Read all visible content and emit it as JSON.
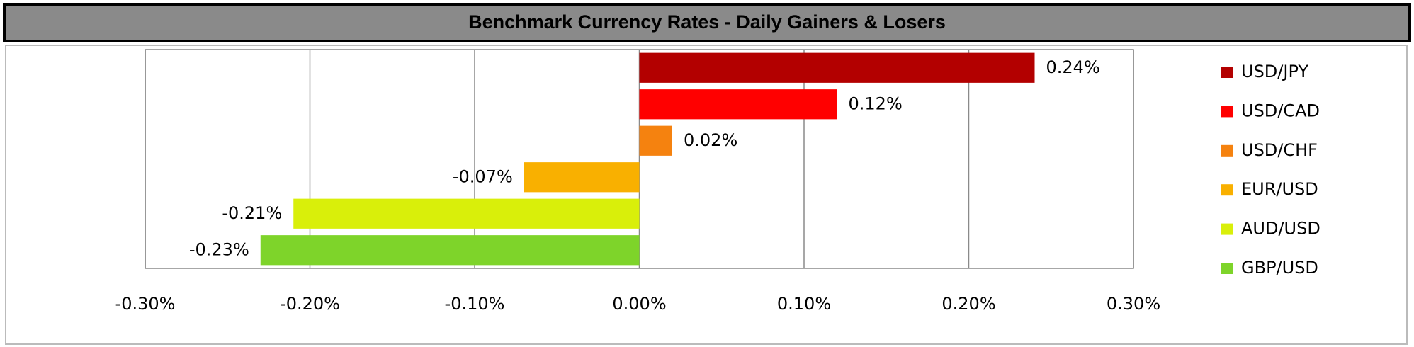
{
  "chart_data": {
    "type": "hbar",
    "title": "Benchmark Currency Rates - Daily Gainers & Losers",
    "categories": [
      "USD/JPY",
      "USD/CAD",
      "USD/CHF",
      "EUR/USD",
      "AUD/USD",
      "GBP/USD"
    ],
    "values": [
      0.24,
      0.12,
      0.02,
      -0.07,
      -0.21,
      -0.23
    ],
    "value_labels": [
      "0.24%",
      "0.12%",
      "0.02%",
      "-0.07%",
      "-0.21%",
      "-0.23%"
    ],
    "colors": [
      "#b30000",
      "#ff0000",
      "#f5820f",
      "#f9b000",
      "#d9ef0a",
      "#7ed42a"
    ],
    "xlim": [
      -0.3,
      0.3
    ],
    "xticks": [
      {
        "value": -0.3,
        "label": "-0.30%"
      },
      {
        "value": -0.2,
        "label": "-0.20%"
      },
      {
        "value": -0.1,
        "label": "-0.10%"
      },
      {
        "value": 0,
        "label": "0.00%"
      },
      {
        "value": 0.1,
        "label": "0.10%"
      },
      {
        "value": 0.2,
        "label": "0.20%"
      },
      {
        "value": 0.3,
        "label": "0.30%"
      }
    ],
    "grid": true,
    "legend": "right"
  }
}
